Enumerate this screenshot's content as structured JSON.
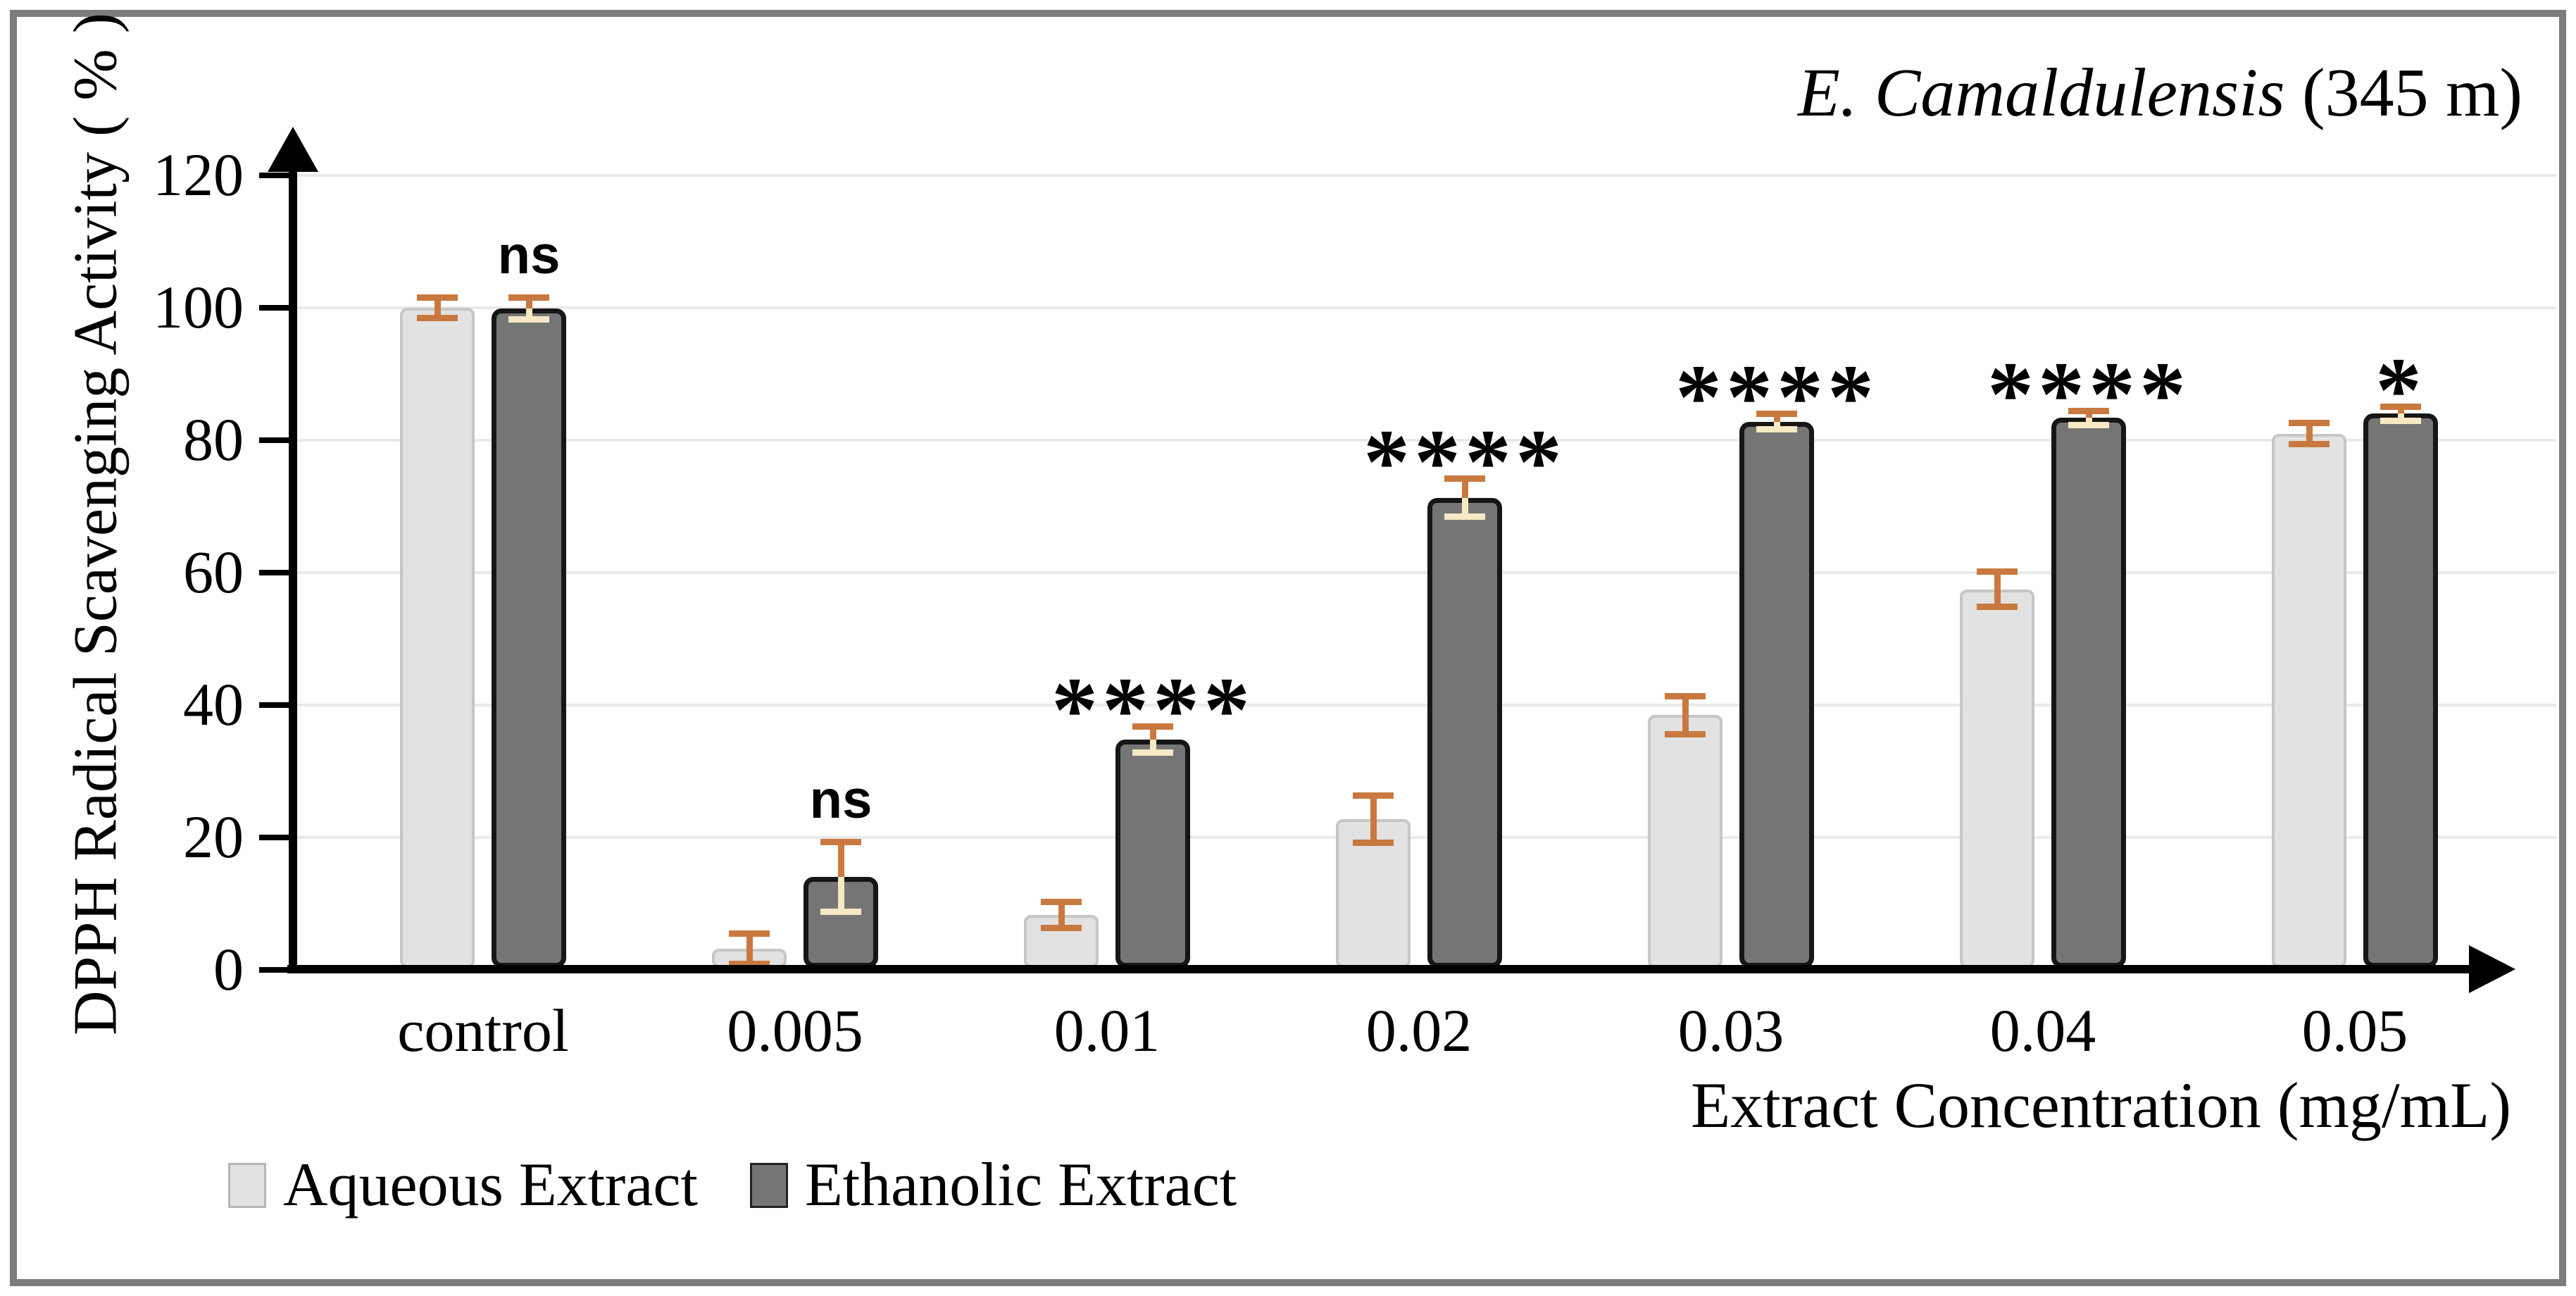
{
  "figure": {
    "title": {
      "italic": "E. Camaldulensis",
      "regular": " (345 m)"
    }
  },
  "chart_data": {
    "type": "bar",
    "title": "E. Camaldulensis (345 m)",
    "xlabel": "Extract Concentration (mg/mL)",
    "ylabel": "DPPH Radical Scavenging Activity ( % )",
    "ylim": [
      0,
      120
    ],
    "yticks": [
      0,
      20,
      40,
      60,
      80,
      100,
      120
    ],
    "grid": true,
    "legend_position": "bottom-left",
    "categories": [
      "control",
      "0.005",
      "0.01",
      "0.02",
      "0.03",
      "0.04",
      "0.05"
    ],
    "series": [
      {
        "name": "Aqueous Extract",
        "color": "#e2e2e2",
        "border_color": "#c6c6c6",
        "values": [
          100,
          3.2,
          8.3,
          22.8,
          38.5,
          57.5,
          81
        ],
        "errors": [
          1.3,
          2.0,
          1.7,
          3.3,
          2.6,
          2.4,
          1.3
        ]
      },
      {
        "name": "Ethanolic Extract",
        "color": "#757575",
        "border_color": "#161616",
        "values": [
          99.9,
          14,
          34.8,
          71.3,
          82.8,
          83.4,
          84
        ],
        "errors": [
          1.4,
          5.0,
          1.7,
          2.6,
          0.9,
          0.8,
          0.8
        ]
      }
    ],
    "significance_by_category": [
      "ns",
      "ns",
      "****",
      "****",
      "****",
      "****",
      "*"
    ],
    "colors": {
      "error_bar": "#c9793f",
      "error_bar_on_dark": "#f6e9c3",
      "gridline": "#e9e9e9",
      "axis": "#000000",
      "frame_border": "#7c7c7c",
      "text": "#000000"
    }
  }
}
